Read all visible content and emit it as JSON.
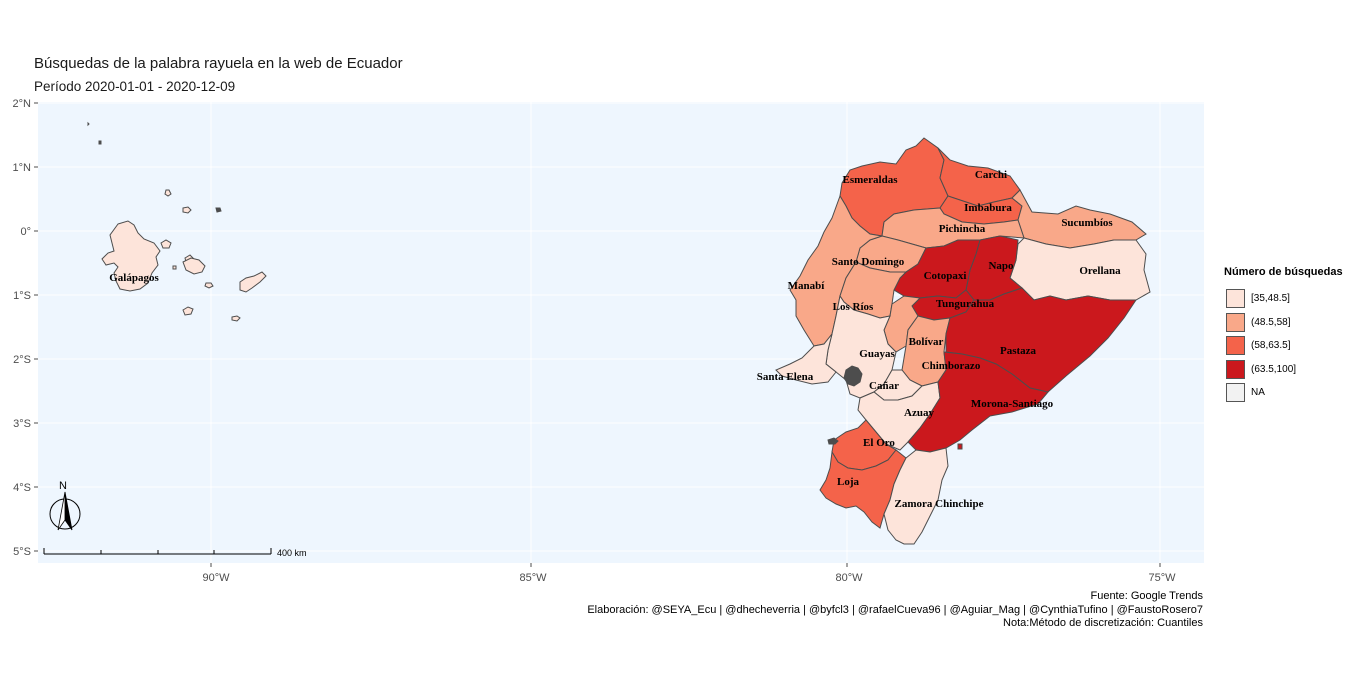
{
  "title": "Búsquedas de la palabra rayuela en la web de Ecuador",
  "subtitle": "Período 2020-01-01 - 2020-12-09",
  "colors": {
    "panel_bg": "#eef6fe",
    "grid": "#ffffff",
    "border": "#4d4d4d",
    "q1": "#fde4da",
    "q2": "#f9a889",
    "q3": "#f4634a",
    "q4": "#cb181d",
    "na": "#f2f2f2"
  },
  "axes": {
    "lon_ticks": [
      "90°W",
      "85°W",
      "80°W",
      "75°W"
    ],
    "lat_ticks": [
      "2°N",
      "1°N",
      "0°",
      "1°S",
      "2°S",
      "3°S",
      "4°S",
      "5°S"
    ]
  },
  "legend": {
    "title": "Número de búsquedas",
    "items": [
      {
        "label": "[35,48.5]",
        "color": "#fde4da"
      },
      {
        "label": "(48.5,58]",
        "color": "#f9a889"
      },
      {
        "label": "(58,63.5]",
        "color": "#f4634a"
      },
      {
        "label": "(63.5,100]",
        "color": "#cb181d"
      },
      {
        "label": "NA",
        "color": "#f2f2f2"
      }
    ]
  },
  "provinces": [
    {
      "name": "Galápagos",
      "class": "[35,48.5]"
    },
    {
      "name": "Esmeraldas",
      "class": "(58,63.5]"
    },
    {
      "name": "Carchi",
      "class": "(58,63.5]"
    },
    {
      "name": "Imbabura",
      "class": "(58,63.5]"
    },
    {
      "name": "Sucumbíos",
      "class": "(48.5,58]"
    },
    {
      "name": "Pichincha",
      "class": "(48.5,58]"
    },
    {
      "name": "Orellana",
      "class": "[35,48.5]"
    },
    {
      "name": "Napo",
      "class": "(63.5,100]"
    },
    {
      "name": "Santo Domingo",
      "class": "(48.5,58]"
    },
    {
      "name": "Cotopaxi",
      "class": "(63.5,100]"
    },
    {
      "name": "Manabí",
      "class": "(48.5,58]"
    },
    {
      "name": "Los Ríos",
      "class": "(48.5,58]"
    },
    {
      "name": "Tungurahua",
      "class": "(63.5,100]"
    },
    {
      "name": "Pastaza",
      "class": "(63.5,100]"
    },
    {
      "name": "Bolívar",
      "class": "(48.5,58]"
    },
    {
      "name": "Guayas",
      "class": "[35,48.5]"
    },
    {
      "name": "Chimborazo",
      "class": "(48.5,58]"
    },
    {
      "name": "Santa Elena",
      "class": "[35,48.5]"
    },
    {
      "name": "Cañar",
      "class": "[35,48.5]"
    },
    {
      "name": "Azuay",
      "class": "[35,48.5]"
    },
    {
      "name": "Morona-Santiago",
      "class": "(63.5,100]"
    },
    {
      "name": "El Oro",
      "class": "(58,63.5]"
    },
    {
      "name": "Loja",
      "class": "(58,63.5]"
    },
    {
      "name": "Zamora Chinchipe",
      "class": "[35,48.5]"
    }
  ],
  "scale_bar": {
    "label": "400 km"
  },
  "north_arrow": {
    "label": "N"
  },
  "caption": {
    "line1": "Fuente: Google Trends",
    "line2": "Elaboración: @SEYA_Ecu | @dhecheverria | @byfcl3 | @rafaelCueva96 | @Aguiar_Mag | @CynthiaTufino | @FaustoRosero7",
    "line3": "Nota:Método de discretización: Cuantiles"
  }
}
